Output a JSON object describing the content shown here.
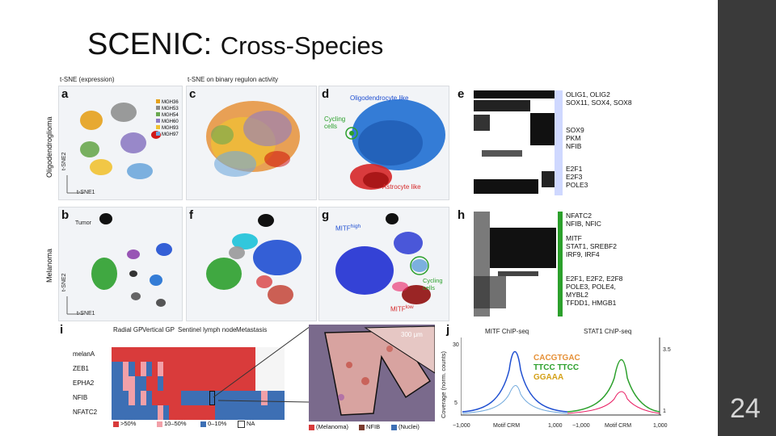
{
  "slide": {
    "title": "SCENIC:",
    "subtitle": "Cross-Species",
    "number": "24"
  },
  "figure": {
    "headers": {
      "tsne_expression": "t-SNE (expression)",
      "tsne_regulon": "t-SNE on binary regulon activity"
    },
    "row_labels": {
      "oligodendroglioma": "Oligodendroglioma",
      "melanoma": "Melanoma"
    },
    "panel_labels": [
      "a",
      "b",
      "c",
      "d",
      "e",
      "f",
      "g",
      "h",
      "i",
      "j"
    ],
    "axis_small": {
      "tsne2": "t-SNE2",
      "tsne1": "t-SNE1"
    },
    "panel_a_legend": [
      "MGH36",
      "MGH53",
      "MGH54",
      "MGH60",
      "MGH93",
      "MGH97"
    ],
    "panel_b_legend_title": "Tumor",
    "panel_d": {
      "oligo": "Oligodendrocyte like",
      "cycling": "Cycling cells",
      "astro": "Astrocyte like"
    },
    "panel_e_tfs": [
      "OLIG1, OLIG2",
      "SOX11, SOX4, SOX8",
      "SOX9",
      "PKM",
      "NFIB",
      "E2F1",
      "E2F3",
      "POLE3"
    ],
    "panel_g": {
      "mitf_high": "MITF",
      "high_sup": "high",
      "cycling": "Cycling cells",
      "mitf_low": "MITF",
      "low_sup": "low"
    },
    "panel_h_tfs": [
      "NFATC2",
      "NFIB, NFIC",
      "MITF",
      "STAT1, SREBF2",
      "IRF9, IRF4",
      "E2F1, E2F2, E2F8",
      "POLE3, POLE4,",
      "MYBL2",
      "TFDD1, HMGB1"
    ],
    "panel_i": {
      "columns": [
        "Radial GP",
        "Vertical GP",
        "Sentinel lymph node",
        "Metastasis"
      ],
      "genes": [
        "melanA",
        "ZEB1",
        "EPHA2",
        "NFIB",
        "NFATC2"
      ],
      "legend": [
        ">50%",
        "10–50%",
        "0–10%",
        "NA"
      ],
      "scale_bar": "300 μm",
      "stain_legend": [
        "(Melanoma)",
        "NFIB",
        "(Nuclei)"
      ]
    },
    "panel_j": {
      "titles": [
        "MITF ChIP-seq",
        "STAT1 ChIP-seq"
      ],
      "ylabel": "Coverage (norm. counts)",
      "y_ticks": [
        "30",
        "5"
      ],
      "y_right_ticks": [
        "3.5",
        "1"
      ],
      "x_ticks": [
        "−1,000",
        "Motif CRM",
        "1,000",
        "−1,000",
        "Motif CRM",
        "1,000"
      ],
      "motifs": [
        "CACGTGAC",
        "TTCC TTCC",
        "GGAAA"
      ]
    },
    "colors": {
      "melanoma_red": "#d93b3b",
      "nfib_blue": "#3d6fb4",
      "blue": "#1f6fd1",
      "red": "#d62728",
      "green": "#2ca02c"
    }
  }
}
